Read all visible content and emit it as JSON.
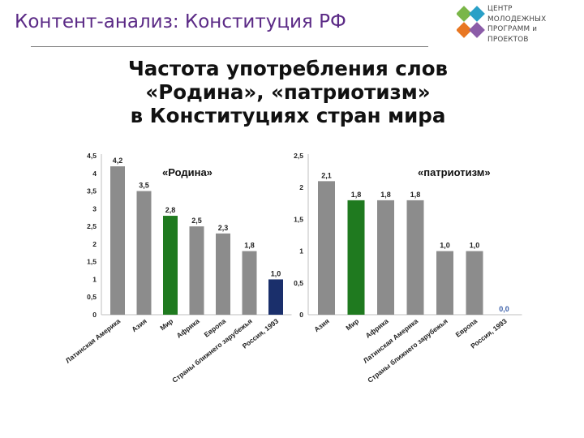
{
  "slide": {
    "title": "Контент-анализ: Конституция РФ",
    "headline": [
      "Частота употребления слов",
      "«Родина», «патриотизм»",
      "в Конституциях стран мира"
    ]
  },
  "logo": {
    "lines": [
      "ЦЕНТР",
      "МОЛОДЕЖНЫХ",
      "ПРОГРАММ и",
      "ПРОЕКТОВ"
    ],
    "colors": [
      "#7ab648",
      "#e87722",
      "#2aa0c7",
      "#8b5ca8"
    ]
  },
  "chart_data": [
    {
      "type": "bar",
      "title": "«Родина»",
      "categories": [
        "Латинская Америка",
        "Азия",
        "Мир",
        "Африка",
        "Европа",
        "Страны ближнего зарубежья",
        "Россия, 1993"
      ],
      "values": [
        4.2,
        3.5,
        2.8,
        2.5,
        2.3,
        1.8,
        1.0
      ],
      "value_labels": [
        "4,2",
        "3,5",
        "2,8",
        "2,5",
        "2,3",
        "1,8",
        "1,0"
      ],
      "bar_colors": [
        "#8c8c8c",
        "#8c8c8c",
        "#1f7a1f",
        "#8c8c8c",
        "#8c8c8c",
        "#8c8c8c",
        "#1a2f6b"
      ],
      "ylim": [
        0,
        4.5
      ],
      "yticks": [
        "0",
        "0,5",
        "1",
        "1,5",
        "2",
        "2,5",
        "3",
        "3,5",
        "4",
        "4,5"
      ],
      "grid": false
    },
    {
      "type": "bar",
      "title": "«патриотизм»",
      "categories": [
        "Азия",
        "Мир",
        "Африка",
        "Латинская Америка",
        "Страны ближнего зарубежья",
        "Европа",
        "Россия, 1993"
      ],
      "values": [
        2.1,
        1.8,
        1.8,
        1.8,
        1.0,
        1.0,
        0.0
      ],
      "value_labels": [
        "2,1",
        "1,8",
        "1,8",
        "1,8",
        "1,0",
        "1,0",
        "0,0"
      ],
      "bar_colors": [
        "#8c8c8c",
        "#1f7a1f",
        "#8c8c8c",
        "#8c8c8c",
        "#8c8c8c",
        "#8c8c8c",
        "#1a2f6b"
      ],
      "ylim": [
        0,
        2.5
      ],
      "yticks": [
        "0",
        "0,5",
        "1",
        "1,5",
        "2",
        "2,5"
      ],
      "grid": false
    }
  ]
}
